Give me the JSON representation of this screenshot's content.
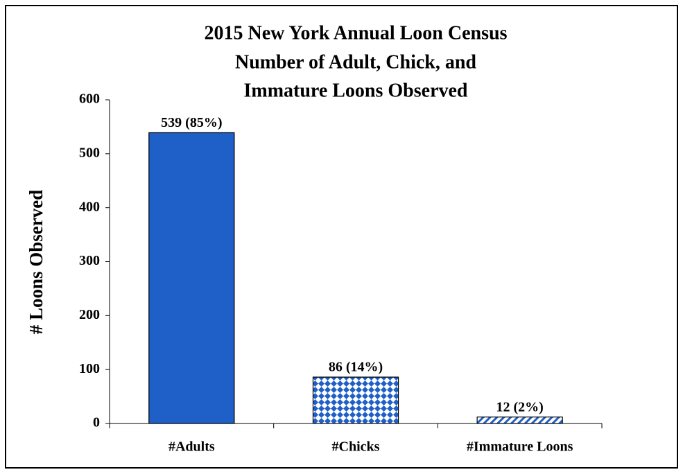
{
  "chart_data": {
    "type": "bar",
    "title": [
      "2015 New York Annual Loon Census",
      "Number of Adult, Chick, and",
      "Immature Loons Observed"
    ],
    "y_label": "# Loons Observed",
    "categories": [
      "#Adults",
      "#Chicks",
      "#Immature Loons"
    ],
    "values": [
      539,
      86,
      12
    ],
    "value_labels": [
      "539 (85%)",
      "86 (14%)",
      "12 (2%)"
    ],
    "colors": [
      "#1f5fc8",
      "#1f5fc8",
      "#1f5fc8"
    ],
    "fills": [
      "solid",
      "diamond",
      "diagonal"
    ],
    "ylim": [
      0,
      600
    ],
    "yticks": [
      0,
      100,
      200,
      300,
      400,
      500,
      600
    ],
    "grid": false
  }
}
